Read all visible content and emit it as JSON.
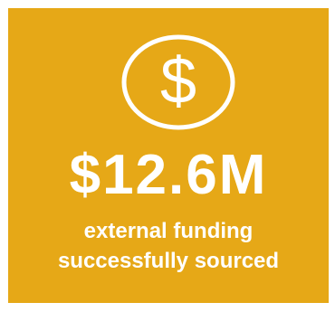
{
  "colors": {
    "card_background": "#E6A817",
    "foreground": "#ffffff"
  },
  "icon": {
    "name": "dollar-icon",
    "glyph": "$"
  },
  "amount": "$12.6M",
  "caption": {
    "line1": "external funding",
    "line2": "successfully sourced"
  }
}
